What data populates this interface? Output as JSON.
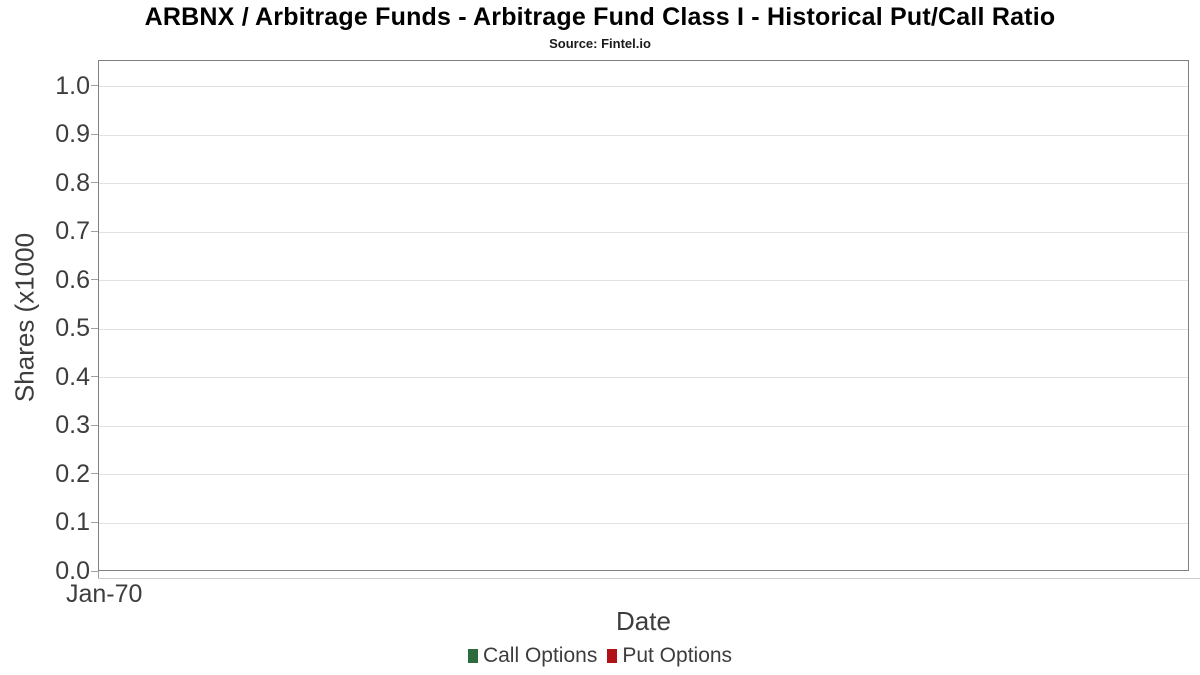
{
  "header": {
    "title": "ARBNX / Arbitrage Funds - Arbitrage Fund Class I - Historical Put/Call Ratio",
    "subtitle": "Source: Fintel.io"
  },
  "colors": {
    "call_options_green": "#2D6A3E",
    "put_options_red": "#B11217",
    "axis_text": "#3D3D3D",
    "gridline": "#E2E2E2",
    "plot_border": "#808080",
    "tick_mark": "#A0A0A0",
    "axis_baseline": "#CCCCCC",
    "title_text": "#000000"
  },
  "chart_data": {
    "type": "line",
    "title": "ARBNX / Arbitrage Funds - Arbitrage Fund Class I - Historical Put/Call Ratio",
    "subtitle": "Source: Fintel.io",
    "xlabel": "Date",
    "ylabel": "Shares (x1000",
    "x_tick_labels": [
      "Jan-70"
    ],
    "y_ticks": [
      0.0,
      0.1,
      0.2,
      0.3,
      0.4,
      0.5,
      0.6,
      0.7,
      0.8,
      0.9,
      1.0
    ],
    "y_tick_format_decimals": 1,
    "ylim": [
      0,
      1.053
    ],
    "grid": "horizontal",
    "legend_position": "bottom",
    "series": [
      {
        "name": "Call Options",
        "color": "#2D6A3E",
        "x": [],
        "values": []
      },
      {
        "name": "Put Options",
        "color": "#B11217",
        "x": [],
        "values": []
      }
    ]
  }
}
